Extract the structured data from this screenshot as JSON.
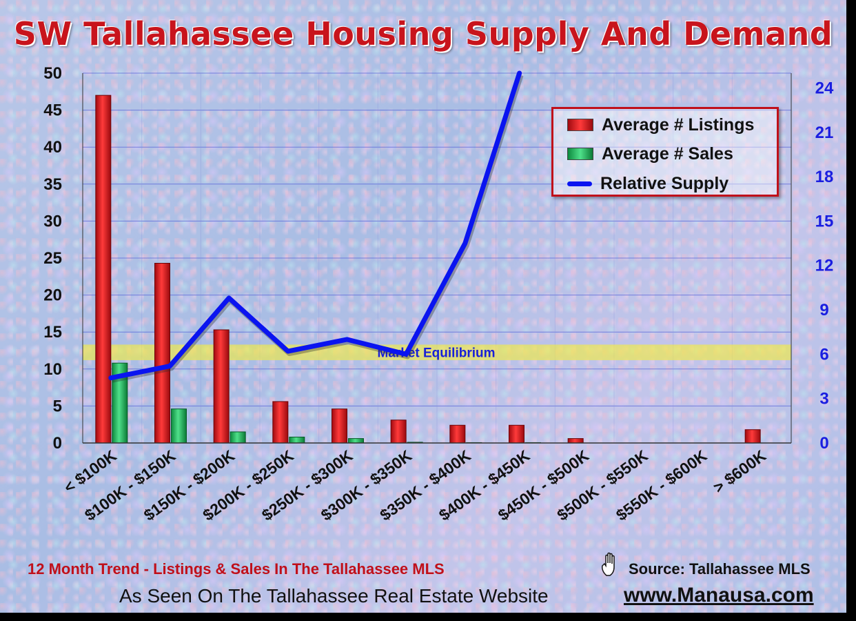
{
  "title": "SW Tallahassee Housing Supply And Demand",
  "chart_data": {
    "type": "bar",
    "categories": [
      "< $100K",
      "$100K - $150K",
      "$150K - $200K",
      "$200K - $250K",
      "$250K - $300K",
      "$300K - $350K",
      "$350K - $400K",
      "$400K - $450K",
      "$450K - $500K",
      "$500K - $550K",
      "$550K - $600K",
      "> $600K"
    ],
    "series": [
      {
        "name": "Average # Listings",
        "axis": "left",
        "color": "#d6121a",
        "values": [
          47.0,
          24.3,
          15.3,
          5.6,
          4.6,
          3.1,
          2.4,
          2.4,
          0.6,
          0,
          0,
          1.8
        ]
      },
      {
        "name": "Average # Sales",
        "axis": "left",
        "color": "#1fb85a",
        "values": [
          10.8,
          4.6,
          1.5,
          0.8,
          0.6,
          0.1,
          0.05,
          0.05,
          0,
          0,
          0,
          0
        ]
      },
      {
        "name": "Relative Supply",
        "type": "line",
        "axis": "right",
        "color": "#0a14f0",
        "values": [
          4.4,
          5.2,
          9.8,
          6.2,
          7.0,
          6.0,
          13.5,
          26,
          null,
          null,
          null,
          null
        ]
      }
    ],
    "ylim_left": [
      0,
      50
    ],
    "yticks_left": [
      0,
      5,
      10,
      15,
      20,
      25,
      30,
      35,
      40,
      45,
      50
    ],
    "ylim_right": [
      0,
      25
    ],
    "yticks_right": [
      0,
      3,
      6,
      9,
      12,
      15,
      18,
      21,
      24
    ],
    "grid": true,
    "legend_position": "top-right",
    "equilibrium_band": {
      "label": "Market Equilibrium",
      "from": 11.2,
      "to": 13.3
    }
  },
  "legend": {
    "items": [
      {
        "label": "Average # Listings",
        "color": "#d6121a"
      },
      {
        "label": "Average # Sales",
        "color": "#1fb85a"
      },
      {
        "label": "Relative Supply",
        "color": "#0a14f0"
      }
    ]
  },
  "footer": {
    "trend": "12 Month Trend - Listings & Sales In The Tallahassee MLS",
    "source": "Source: Tallahassee MLS",
    "seen_on": "As Seen On The Tallahassee Real Estate Website",
    "website": "www.Manausa.com"
  }
}
